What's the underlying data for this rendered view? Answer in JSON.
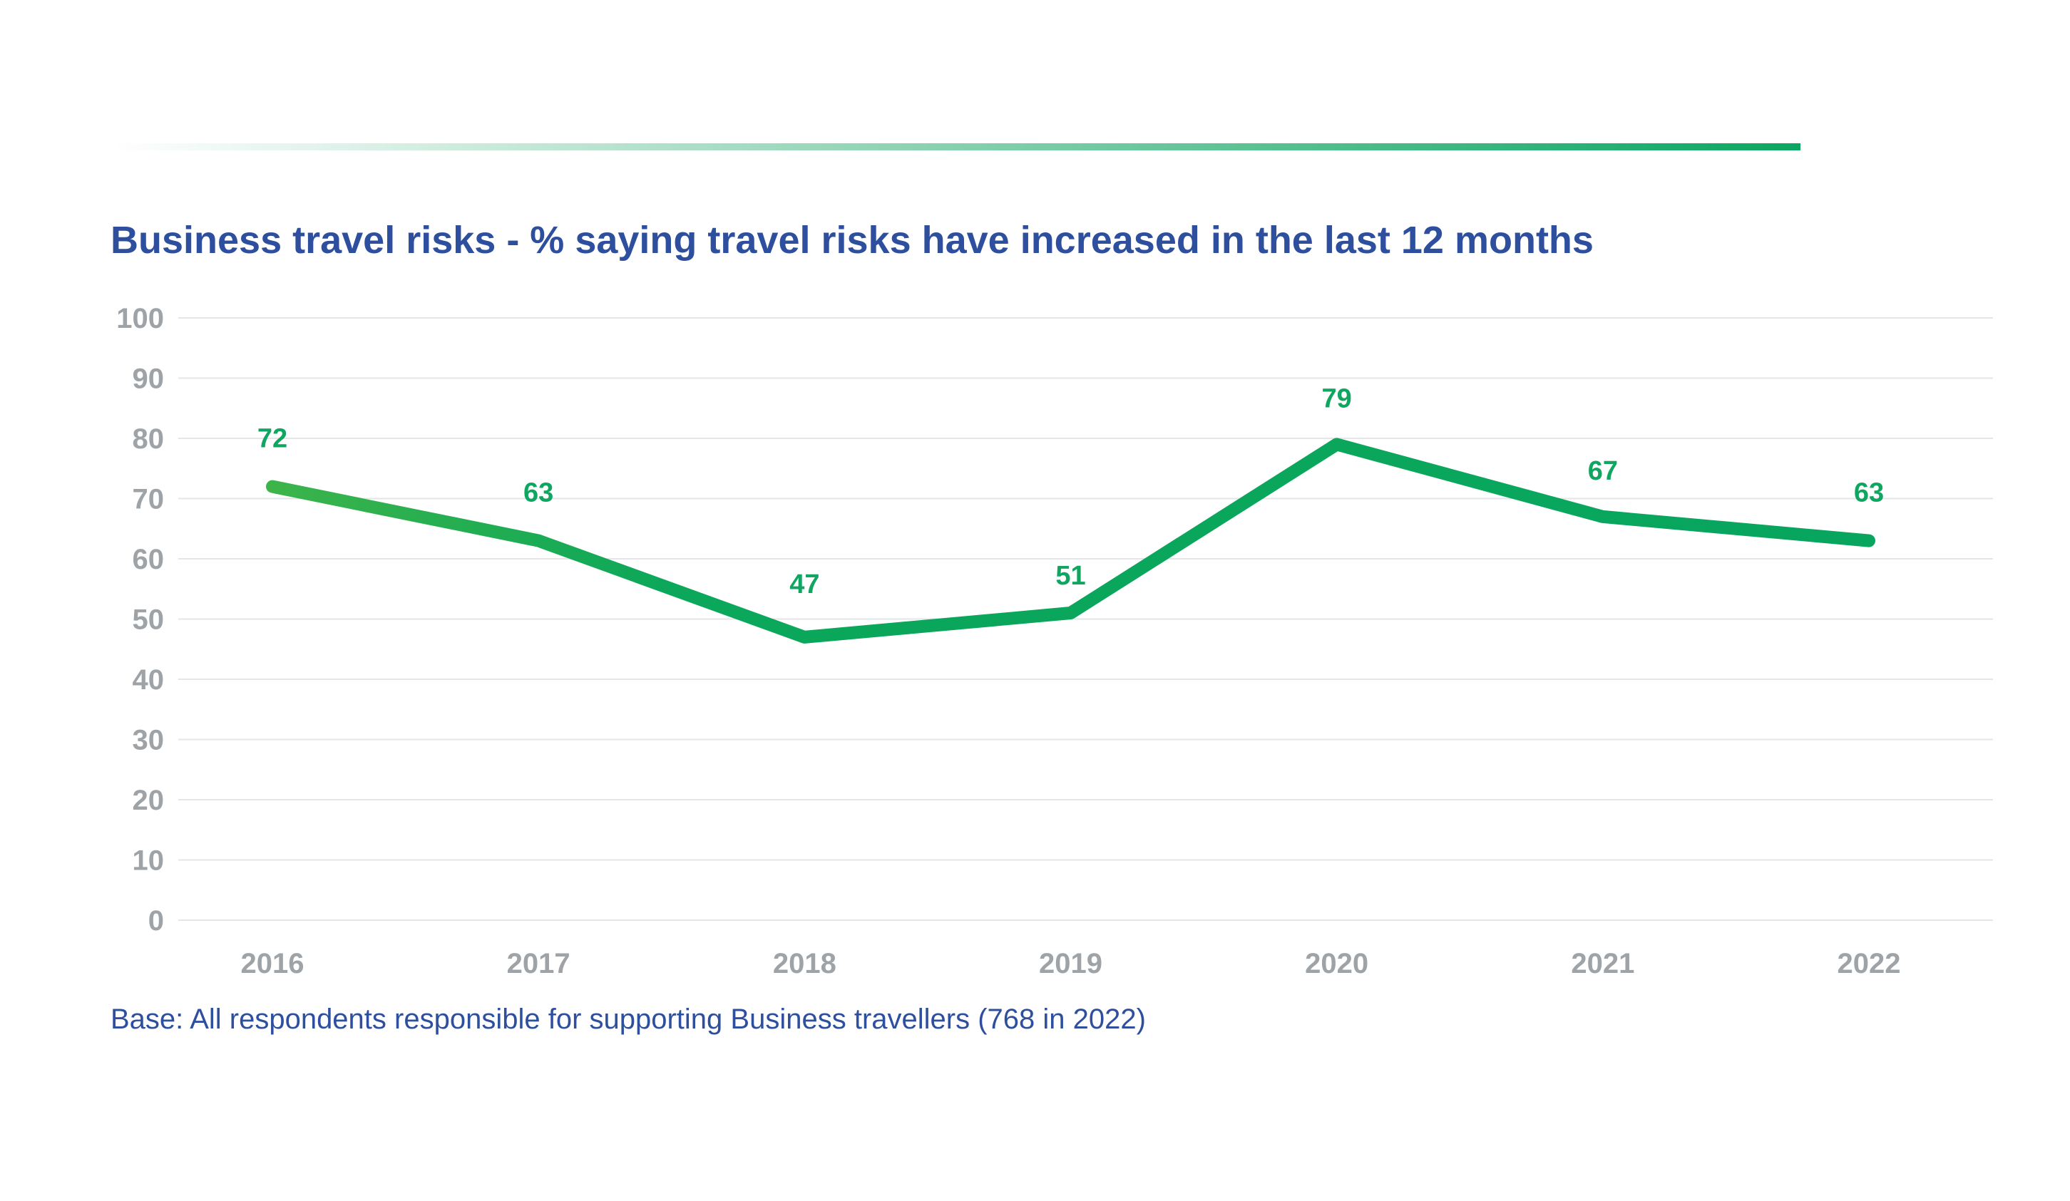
{
  "chart_data": {
    "type": "line",
    "title": "Business travel risks - % saying travel risks have increased in the last 12 months",
    "xlabel": "",
    "ylabel": "",
    "categories": [
      "2016",
      "2017",
      "2018",
      "2019",
      "2020",
      "2021",
      "2022"
    ],
    "series": [
      {
        "values": [
          72,
          63,
          47,
          51,
          79,
          67,
          63
        ]
      }
    ],
    "data_labels": [
      "72",
      "63",
      "47",
      "51",
      "79",
      "67",
      "63"
    ],
    "y_ticks": [
      "0",
      "10",
      "20",
      "30",
      "40",
      "50",
      "60",
      "70",
      "80",
      "90",
      "100"
    ],
    "ylim": [
      0,
      100
    ],
    "grid": true,
    "legend": "none",
    "note": "Base: All respondents responsible for supporting Business travellers (768 in 2022)"
  },
  "colors": {
    "title": "#2e4f9e",
    "line_start": "#3cb44a",
    "line_end": "#08a55e",
    "data_label": "#10a560",
    "tick": "#9ea3a8",
    "grid": "#e3e5e8",
    "accent_rule": "#0aa660"
  }
}
